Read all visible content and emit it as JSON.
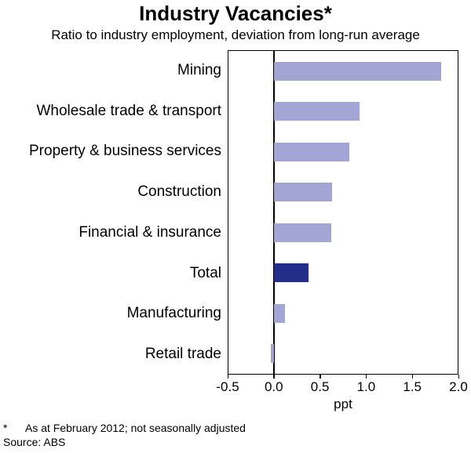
{
  "title": "Industry Vacancies*",
  "subtitle": "Ratio to industry employment, deviation from long-run average",
  "footnote_marker": "*",
  "footnote_text": "As at February 2012; not seasonally adjusted",
  "source": "Source: ABS",
  "chart_data": {
    "type": "bar",
    "orientation": "horizontal",
    "title": "Industry Vacancies*",
    "subtitle": "Ratio to industry employment, deviation from long-run average",
    "categories": [
      "Mining",
      "Wholesale trade & transport",
      "Property & business services",
      "Construction",
      "Financial & insurance",
      "Total",
      "Manufacturing",
      "Retail trade"
    ],
    "values": [
      1.82,
      0.93,
      0.82,
      0.63,
      0.62,
      0.37,
      0.12,
      -0.04
    ],
    "xlabel": "ppt",
    "xlim": [
      -0.5,
      2.0
    ],
    "xticks": [
      -0.5,
      0.0,
      0.5,
      1.0,
      1.5,
      2.0
    ],
    "xtick_labels": [
      "-0.5",
      "0.0",
      "0.5",
      "1.0",
      "1.5",
      "2.0"
    ],
    "grid": false,
    "zero_line": true,
    "legend": "none",
    "bar_color": "#a3a6d4",
    "total_bar_color": "#232e8a",
    "highlight_category": "Total"
  }
}
